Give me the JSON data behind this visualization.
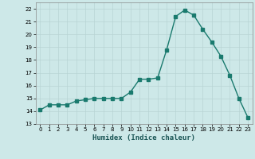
{
  "x": [
    0,
    1,
    2,
    3,
    4,
    5,
    6,
    7,
    8,
    9,
    10,
    11,
    12,
    13,
    14,
    15,
    16,
    17,
    18,
    19,
    20,
    21,
    22,
    23
  ],
  "y": [
    14.1,
    14.5,
    14.5,
    14.5,
    14.8,
    14.9,
    15.0,
    15.0,
    15.0,
    15.0,
    15.5,
    16.5,
    16.5,
    16.6,
    18.8,
    21.4,
    21.9,
    21.5,
    20.4,
    19.4,
    18.3,
    16.8,
    15.0,
    13.5
  ],
  "line_color": "#1a7a6e",
  "marker": "s",
  "markersize": 2.2,
  "linewidth": 1.0,
  "xlabel": "Humidex (Indice chaleur)",
  "xlim": [
    -0.5,
    23.5
  ],
  "ylim": [
    13,
    22.5
  ],
  "yticks": [
    13,
    14,
    15,
    16,
    17,
    18,
    19,
    20,
    21,
    22
  ],
  "xticks": [
    0,
    1,
    2,
    3,
    4,
    5,
    6,
    7,
    8,
    9,
    10,
    11,
    12,
    13,
    14,
    15,
    16,
    17,
    18,
    19,
    20,
    21,
    22,
    23
  ],
  "bg_color": "#cde8e8",
  "grid_color": "#b8d4d4"
}
